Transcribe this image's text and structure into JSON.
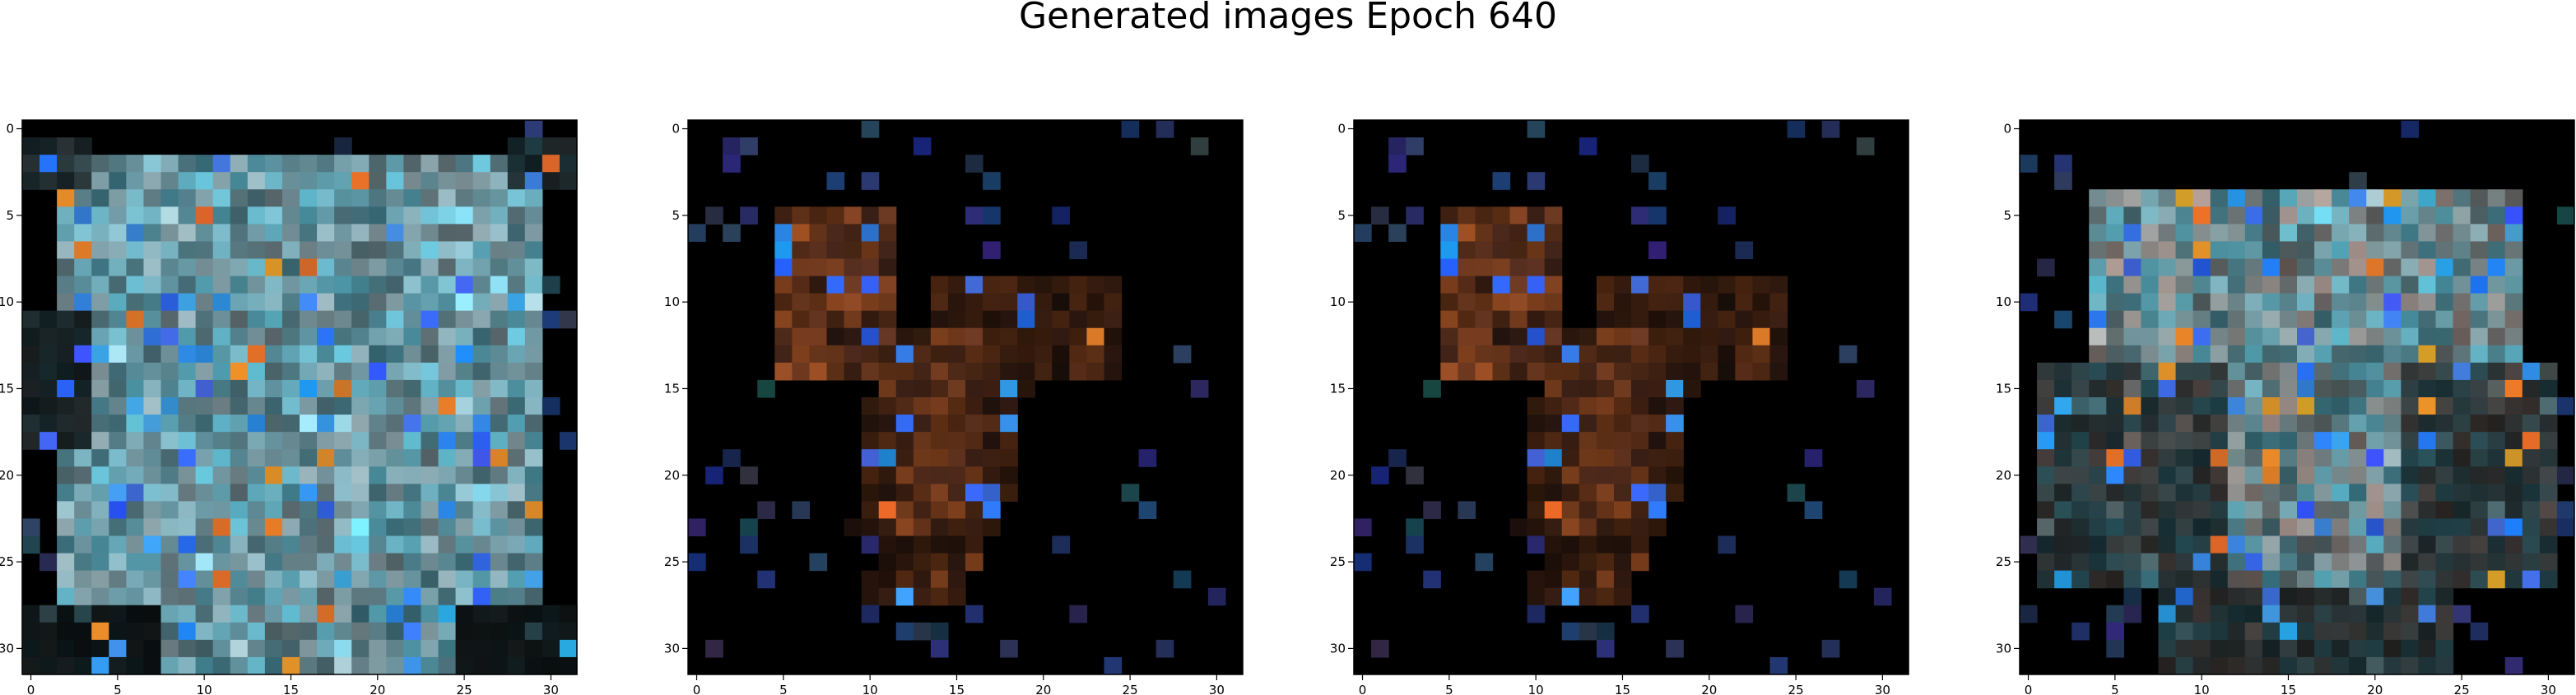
{
  "figure": {
    "title": "Generated images Epoch 640"
  },
  "chart_data": [
    {
      "type": "heatmap",
      "title": "",
      "xlabel": "",
      "ylabel": "",
      "xlim": [
        -0.5,
        31.5
      ],
      "ylim": [
        31.5,
        -0.5
      ],
      "x_ticks": [
        "0",
        "5",
        "10",
        "15",
        "20",
        "25",
        "30"
      ],
      "y_ticks": [
        "0",
        "5",
        "10",
        "15",
        "20",
        "25",
        "30"
      ],
      "grid": false,
      "grid_size": [
        32,
        32
      ],
      "background": "#000000",
      "primary_color": "#6ad0e8",
      "secondary_color": "#a8c4cc",
      "shape": "dense cyan/blue blob filling most of the frame"
    },
    {
      "type": "heatmap",
      "title": "",
      "xlabel": "",
      "ylabel": "",
      "xlim": [
        -0.5,
        31.5
      ],
      "ylim": [
        31.5,
        -0.5
      ],
      "x_ticks": [
        "0",
        "5",
        "10",
        "15",
        "20",
        "25",
        "30"
      ],
      "y_ticks": [
        "0",
        "5",
        "10",
        "15",
        "20",
        "25",
        "30"
      ],
      "grid": false,
      "grid_size": [
        32,
        32
      ],
      "background": "#000000",
      "primary_color": "#6a3a2a",
      "secondary_color": "#e07030",
      "shape": "sparse dark brown cluster with a few cyan pixels top-left"
    },
    {
      "type": "heatmap",
      "title": "",
      "xlabel": "",
      "ylabel": "",
      "xlim": [
        -0.5,
        31.5
      ],
      "ylim": [
        31.5,
        -0.5
      ],
      "x_ticks": [
        "0",
        "5",
        "10",
        "15",
        "20",
        "25",
        "30"
      ],
      "y_ticks": [
        "0",
        "5",
        "10",
        "15",
        "20",
        "25",
        "30"
      ],
      "grid": false,
      "grid_size": [
        32,
        32
      ],
      "background": "#000000",
      "primary_color": "#6a3a2a",
      "secondary_color": "#e07030",
      "shape": "sparse dark brown cluster with a few cyan pixels top-left"
    },
    {
      "type": "heatmap",
      "title": "",
      "xlabel": "",
      "ylabel": "",
      "xlim": [
        -0.5,
        31.5
      ],
      "ylim": [
        31.5,
        -0.5
      ],
      "x_ticks": [
        "0",
        "5",
        "10",
        "15",
        "20",
        "25",
        "30"
      ],
      "y_ticks": [
        "0",
        "5",
        "10",
        "15",
        "20",
        "25",
        "30"
      ],
      "grid": false,
      "grid_size": [
        32,
        32
      ],
      "background": "#000000",
      "primary_color": "#5fc8e0",
      "secondary_color": "#c0a8a0",
      "shape": "cyan upper blob with pinkish-grey central trunk"
    }
  ]
}
